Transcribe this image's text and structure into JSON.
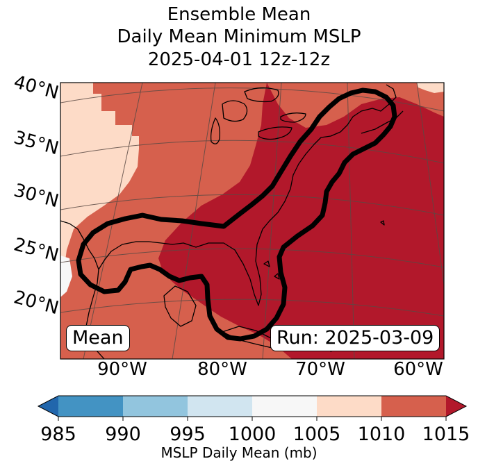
{
  "title": {
    "line1": "Ensemble Mean",
    "line2": "Daily Mean Minimum MSLP",
    "line3": "2025-04-01 12z-12z"
  },
  "map": {
    "lat_labels": [
      "40°N",
      "35°N",
      "30°N",
      "25°N",
      "20°N"
    ],
    "lon_labels": [
      "90°W",
      "80°W",
      "70°W",
      "60°W"
    ],
    "mean_label": "Mean",
    "run_label": "Run: 2025-03-09",
    "colors": {
      "1000_1005": "#f7f7f7",
      "1005_1010": "#fddbc7",
      "1010_1015": "#d6604d",
      "above_1015": "#b2182b",
      "contour": "#000000",
      "coast": "#000000",
      "grid": "#5a4a44"
    }
  },
  "colorbar": {
    "ticks": [
      "985",
      "990",
      "995",
      "1000",
      "1005",
      "1010",
      "1015"
    ],
    "label": "MSLP Daily Mean (mb)",
    "colors": {
      "below_985": "#2166ac",
      "985_990": "#4393c3",
      "990_995": "#92c5de",
      "995_1000": "#d1e5f0",
      "1000_1005": "#f7f7f7",
      "1005_1010": "#fddbc7",
      "1010_1015": "#d6604d",
      "above_1015": "#b2182b"
    }
  }
}
